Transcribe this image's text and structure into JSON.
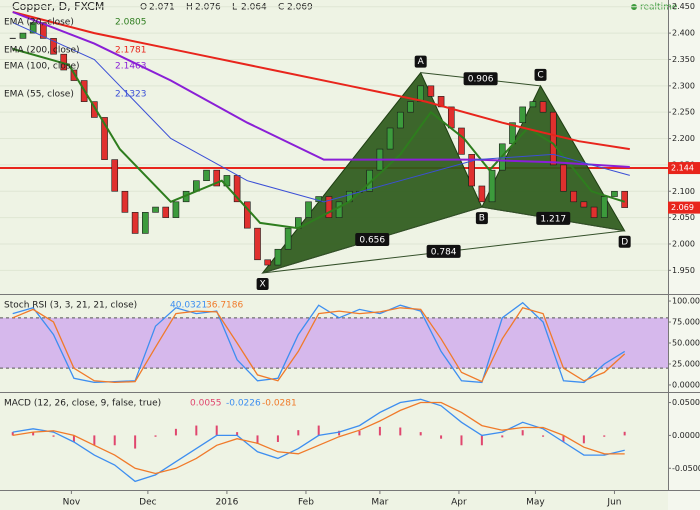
{
  "header": {
    "title": "Copper, D, FXCM",
    "ohlc": [
      {
        "label": "O",
        "value": 2.071
      },
      {
        "label": "H",
        "value": 2.076
      },
      {
        "label": "L",
        "value": 2.064
      },
      {
        "label": "C",
        "value": 2.069
      }
    ],
    "status": "realtime"
  },
  "chart_data": [
    {
      "type": "candlestick",
      "xlim": [
        3,
        265
      ],
      "ylim": [
        1.907,
        2.459
      ],
      "yticks": [
        {
          "value": 2.45,
          "label": "2.450"
        },
        {
          "value": 2.4,
          "label": "2.400"
        },
        {
          "value": 2.35,
          "label": "2.350"
        },
        {
          "value": 2.3,
          "label": "2.300"
        },
        {
          "value": 2.25,
          "label": "2.250"
        },
        {
          "value": 2.2,
          "label": "2.200"
        },
        {
          "value": 2.15,
          "label": "2.150"
        },
        {
          "value": 2.1,
          "label": "2.100"
        },
        {
          "value": 2.05,
          "label": "2.050"
        },
        {
          "value": 2,
          "label": "2.000"
        },
        {
          "value": 1.95,
          "label": "1.950"
        }
      ],
      "grid": true,
      "up_color": "#3c9a3c",
      "down_color": "#e0302e",
      "x": [
        8,
        12,
        16,
        20,
        24,
        28,
        32,
        36,
        40,
        44,
        48,
        52,
        56,
        60,
        64,
        68,
        72,
        76,
        80,
        84,
        88,
        92,
        96,
        100,
        104,
        108,
        112,
        116,
        120,
        124,
        128,
        132,
        136,
        140,
        144,
        148,
        152,
        156,
        160,
        164,
        168,
        172,
        176,
        180,
        184,
        188,
        192,
        196,
        200,
        204,
        208,
        212,
        216,
        220,
        224,
        228,
        232,
        236,
        240,
        244,
        248
      ],
      "close": [
        2.39,
        2.4,
        2.42,
        2.39,
        2.36,
        2.33,
        2.31,
        2.27,
        2.24,
        2.16,
        2.1,
        2.06,
        2.02,
        2.06,
        2.07,
        2.05,
        2.08,
        2.1,
        2.12,
        2.14,
        2.11,
        2.13,
        2.08,
        2.03,
        1.97,
        1.96,
        1.99,
        2.03,
        2.05,
        2.08,
        2.09,
        2.05,
        2.08,
        2.1,
        2.1,
        2.14,
        2.18,
        2.22,
        2.25,
        2.27,
        2.3,
        2.28,
        2.26,
        2.22,
        2.17,
        2.11,
        2.08,
        2.14,
        2.19,
        2.23,
        2.26,
        2.27,
        2.25,
        2.15,
        2.1,
        2.08,
        2.07,
        2.05,
        2.09,
        2.1,
        2.069
      ],
      "series": [
        {
          "name": "EMA (20, close)",
          "color": "#2e7d1e",
          "legend_value": 2.0805,
          "x": [
            8,
            30,
            50,
            70,
            90,
            105,
            120,
            140,
            160,
            172,
            185,
            195,
            210,
            220,
            235,
            248
          ],
          "values": [
            2.37,
            2.34,
            2.18,
            2.08,
            2.12,
            2.04,
            2.03,
            2.08,
            2.17,
            2.25,
            2.2,
            2.14,
            2.22,
            2.19,
            2.1,
            2.08
          ]
        },
        {
          "name": "EMA (200, close)",
          "color": "#e8251c",
          "legend_value": 2.1781,
          "x": [
            8,
            40,
            80,
            110,
            140,
            170,
            200,
            230,
            250
          ],
          "values": [
            2.44,
            2.4,
            2.36,
            2.33,
            2.3,
            2.27,
            2.23,
            2.195,
            2.18
          ]
        },
        {
          "name": "EMA (100, close)",
          "color": "#8a1fd6",
          "legend_value": 2.1463,
          "x": [
            8,
            40,
            70,
            100,
            130,
            160,
            190,
            220,
            250
          ],
          "values": [
            2.44,
            2.38,
            2.31,
            2.23,
            2.16,
            2.16,
            2.16,
            2.155,
            2.146
          ]
        },
        {
          "name": "EMA (55, close)",
          "color": "#3b4fd6",
          "legend_value": 2.1323,
          "x": [
            8,
            40,
            70,
            100,
            130,
            160,
            190,
            220,
            250
          ],
          "values": [
            2.42,
            2.35,
            2.2,
            2.12,
            2.08,
            2.12,
            2.16,
            2.17,
            2.13
          ]
        }
      ],
      "hline": {
        "value": 2.144,
        "color": "#e8251c"
      },
      "pattern": {
        "color": "#2d5a1b",
        "points": [
          {
            "label": "X",
            "x": 106,
            "y": 1.945
          },
          {
            "label": "A",
            "x": 168,
            "y": 2.325
          },
          {
            "label": "B",
            "x": 192,
            "y": 2.07
          },
          {
            "label": "C",
            "x": 215,
            "y": 2.3
          },
          {
            "label": "D",
            "x": 248,
            "y": 2.025
          }
        ],
        "ratios": {
          "XAB": 0.656,
          "ABC": 0.906,
          "BCD": 1.217,
          "XAD": 0.784
        }
      }
    },
    {
      "type": "line",
      "title": "Stoch RSI (3, 3, 21, 21, close)",
      "xlim": [
        3,
        265
      ],
      "ylim": [
        -6,
        106
      ],
      "yticks": [
        {
          "value": 100,
          "label": "100.0000"
        },
        {
          "value": 75,
          "label": "75.0000"
        },
        {
          "value": 50,
          "label": "50.0000"
        },
        {
          "value": 25,
          "label": "25.0000"
        },
        {
          "value": 0,
          "label": "0.0000"
        }
      ],
      "band": [
        20,
        80
      ],
      "band_color": "#d6b8ec",
      "x": [
        8,
        16,
        24,
        32,
        40,
        48,
        56,
        64,
        72,
        80,
        88,
        96,
        104,
        112,
        120,
        128,
        136,
        144,
        152,
        160,
        168,
        176,
        184,
        192,
        200,
        208,
        216,
        224,
        232,
        240,
        248
      ],
      "series": [
        {
          "color": "#3d8ef0",
          "legend_value": 40.0321,
          "values": [
            85,
            92,
            60,
            8,
            3,
            4,
            5,
            70,
            92,
            85,
            88,
            30,
            5,
            8,
            60,
            95,
            80,
            90,
            85,
            95,
            88,
            40,
            5,
            3,
            80,
            98,
            75,
            5,
            3,
            25,
            40
          ]
        },
        {
          "color": "#f07a2a",
          "legend_value": 36.7186,
          "values": [
            80,
            90,
            75,
            20,
            5,
            3,
            4,
            45,
            85,
            88,
            87,
            50,
            12,
            5,
            40,
            85,
            88,
            85,
            87,
            92,
            90,
            55,
            15,
            4,
            55,
            92,
            85,
            20,
            5,
            15,
            37
          ]
        }
      ]
    },
    {
      "type": "macd",
      "title": "MACD (12, 26, close, 9, false, true)",
      "xlim": [
        3,
        265
      ],
      "ylim": [
        -0.08,
        0.063
      ],
      "yticks": [
        {
          "value": 0.05,
          "label": "0.0500"
        },
        {
          "value": 0,
          "label": "0.0000"
        },
        {
          "value": -0.05,
          "label": "-0.0500"
        }
      ],
      "xticks": [
        {
          "value": 31,
          "label": "Nov"
        },
        {
          "value": 61,
          "label": "Dec"
        },
        {
          "value": 92,
          "label": "2016"
        },
        {
          "value": 123,
          "label": "Feb"
        },
        {
          "value": 152,
          "label": "Mar"
        },
        {
          "value": 183,
          "label": "Apr"
        },
        {
          "value": 213,
          "label": "May"
        },
        {
          "value": 244,
          "label": "Jun"
        }
      ],
      "x": [
        8,
        16,
        24,
        32,
        40,
        48,
        56,
        64,
        72,
        80,
        88,
        96,
        104,
        112,
        120,
        128,
        136,
        144,
        152,
        160,
        168,
        176,
        184,
        192,
        200,
        208,
        216,
        224,
        232,
        240,
        248
      ],
      "histogram": {
        "color": "#e0466e",
        "legend_value": 0.0055,
        "values": [
          0.005,
          0.005,
          -0.002,
          -0.01,
          -0.015,
          -0.015,
          -0.02,
          -0.002,
          0.01,
          0.015,
          0.015,
          0.005,
          -0.013,
          -0.01,
          0.008,
          0.015,
          0.007,
          0.007,
          0.013,
          0.012,
          0.005,
          -0.005,
          -0.015,
          -0.015,
          -0.003,
          0.008,
          -0.002,
          -0.01,
          -0.012,
          -0.002,
          0.0055
        ]
      },
      "series": [
        {
          "color": "#3d8ef0",
          "legend_value": -0.0226,
          "values": [
            0.005,
            0.01,
            0.005,
            -0.01,
            -0.03,
            -0.045,
            -0.07,
            -0.06,
            -0.04,
            -0.02,
            0.0,
            0.0,
            -0.025,
            -0.035,
            -0.02,
            0.0,
            0.005,
            0.015,
            0.035,
            0.05,
            0.055,
            0.045,
            0.02,
            0.0,
            0.005,
            0.02,
            0.01,
            -0.01,
            -0.03,
            -0.03,
            -0.0226
          ]
        },
        {
          "color": "#f07a2a",
          "legend_value": -0.0281,
          "values": [
            0.0,
            0.005,
            0.007,
            0.0,
            -0.015,
            -0.03,
            -0.05,
            -0.058,
            -0.05,
            -0.035,
            -0.015,
            -0.005,
            -0.012,
            -0.025,
            -0.028,
            -0.015,
            -0.002,
            0.008,
            0.022,
            0.038,
            0.05,
            0.05,
            0.035,
            0.015,
            0.008,
            0.012,
            0.012,
            0.0,
            -0.018,
            -0.028,
            -0.0281
          ]
        }
      ]
    }
  ]
}
